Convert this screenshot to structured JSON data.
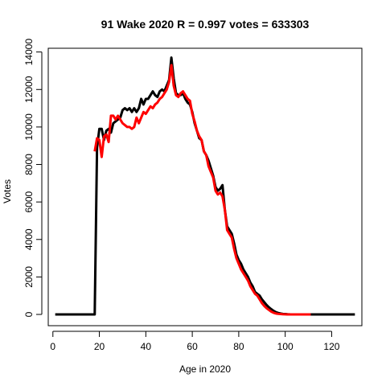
{
  "chart_data": {
    "type": "line",
    "title": "91 Wake 2020 R = 0.997 votes = 633303",
    "xlabel": "Age in 2020",
    "ylabel": "Votes",
    "xlim": [
      -2,
      133
    ],
    "ylim": [
      -600,
      14200
    ],
    "xticks": [
      0,
      20,
      40,
      60,
      80,
      100,
      120
    ],
    "yticks": [
      0,
      2000,
      4000,
      6000,
      8000,
      10000,
      12000,
      14000
    ],
    "grid": false,
    "series": [
      {
        "color": "#000000",
        "x": [
          1,
          18,
          19,
          20,
          21,
          22,
          23,
          24,
          25,
          26,
          27,
          28,
          29,
          30,
          31,
          32,
          33,
          34,
          35,
          36,
          37,
          38,
          39,
          40,
          41,
          42,
          43,
          44,
          45,
          46,
          47,
          48,
          49,
          50,
          51,
          52,
          53,
          54,
          55,
          56,
          57,
          58,
          59,
          60,
          61,
          62,
          63,
          64,
          65,
          66,
          67,
          68,
          69,
          70,
          71,
          72,
          73,
          74,
          75,
          76,
          77,
          78,
          79,
          80,
          81,
          82,
          83,
          84,
          85,
          86,
          87,
          88,
          89,
          90,
          91,
          92,
          93,
          94,
          95,
          96,
          97,
          98,
          99,
          100,
          101,
          102,
          103,
          104,
          105,
          106,
          107,
          108,
          109,
          110,
          111,
          112,
          113,
          114,
          115,
          116,
          117,
          118,
          119,
          120,
          121,
          122,
          123,
          124,
          125,
          126,
          127,
          128,
          129,
          130
        ],
        "y": [
          0,
          0,
          8900,
          9900,
          9900,
          9300,
          9800,
          9900,
          9700,
          10200,
          10300,
          10400,
          10500,
          10900,
          11000,
          10900,
          11000,
          10800,
          11000,
          10800,
          11000,
          11500,
          11200,
          11500,
          11500,
          11700,
          11900,
          11700,
          11600,
          11900,
          12000,
          11900,
          12200,
          12500,
          13700,
          12600,
          11800,
          11700,
          11700,
          11800,
          11500,
          11300,
          11200,
          10800,
          10200,
          9800,
          9400,
          9300,
          8700,
          8500,
          8200,
          7800,
          7400,
          6800,
          6600,
          6700,
          6900,
          5600,
          4700,
          4500,
          4300,
          3800,
          3200,
          2900,
          2700,
          2400,
          2200,
          2000,
          1700,
          1500,
          1200,
          1100,
          1000,
          800,
          650,
          500,
          380,
          280,
          190,
          120,
          80,
          50,
          30,
          20,
          10,
          5,
          3,
          0,
          0,
          0,
          0,
          0,
          0,
          0,
          0,
          0,
          0,
          0,
          0,
          0,
          0,
          0,
          0,
          0,
          0,
          0,
          0,
          0,
          0,
          0,
          0,
          0,
          0,
          0
        ]
      },
      {
        "color": "#ff0000",
        "x": [
          18,
          19,
          20,
          21,
          22,
          23,
          24,
          25,
          26,
          27,
          28,
          29,
          30,
          31,
          32,
          33,
          34,
          35,
          36,
          37,
          38,
          39,
          40,
          41,
          42,
          43,
          44,
          45,
          46,
          47,
          48,
          49,
          50,
          51,
          52,
          53,
          54,
          55,
          56,
          57,
          58,
          59,
          60,
          61,
          62,
          63,
          64,
          65,
          66,
          67,
          68,
          69,
          70,
          71,
          72,
          73,
          74,
          75,
          76,
          77,
          78,
          79,
          80,
          81,
          82,
          83,
          84,
          85,
          86,
          87,
          88,
          89,
          90,
          91,
          92,
          93,
          94,
          95,
          96,
          97,
          98,
          99,
          100,
          101,
          102,
          103,
          104,
          105,
          106,
          107,
          108,
          109,
          110,
          111
        ],
        "y": [
          8700,
          9400,
          9300,
          8400,
          9500,
          9600,
          9200,
          10600,
          10600,
          10400,
          10600,
          10400,
          10200,
          10100,
          10000,
          10000,
          9900,
          10000,
          10500,
          10200,
          10500,
          10800,
          10700,
          10900,
          11100,
          11000,
          11200,
          11300,
          11500,
          11600,
          11800,
          12000,
          12400,
          13300,
          12200,
          11700,
          11600,
          11800,
          11900,
          11700,
          11500,
          11400,
          10700,
          10300,
          9800,
          9500,
          9300,
          8700,
          8500,
          7900,
          7600,
          7300,
          6600,
          6400,
          6500,
          6300,
          5600,
          4500,
          4300,
          4100,
          3500,
          3000,
          2700,
          2400,
          2200,
          2000,
          1800,
          1500,
          1300,
          1100,
          1000,
          800,
          600,
          450,
          330,
          240,
          150,
          90,
          50,
          30,
          20,
          10,
          5,
          0,
          0,
          0,
          0,
          0,
          0,
          0,
          0,
          0,
          0,
          0
        ]
      }
    ]
  }
}
